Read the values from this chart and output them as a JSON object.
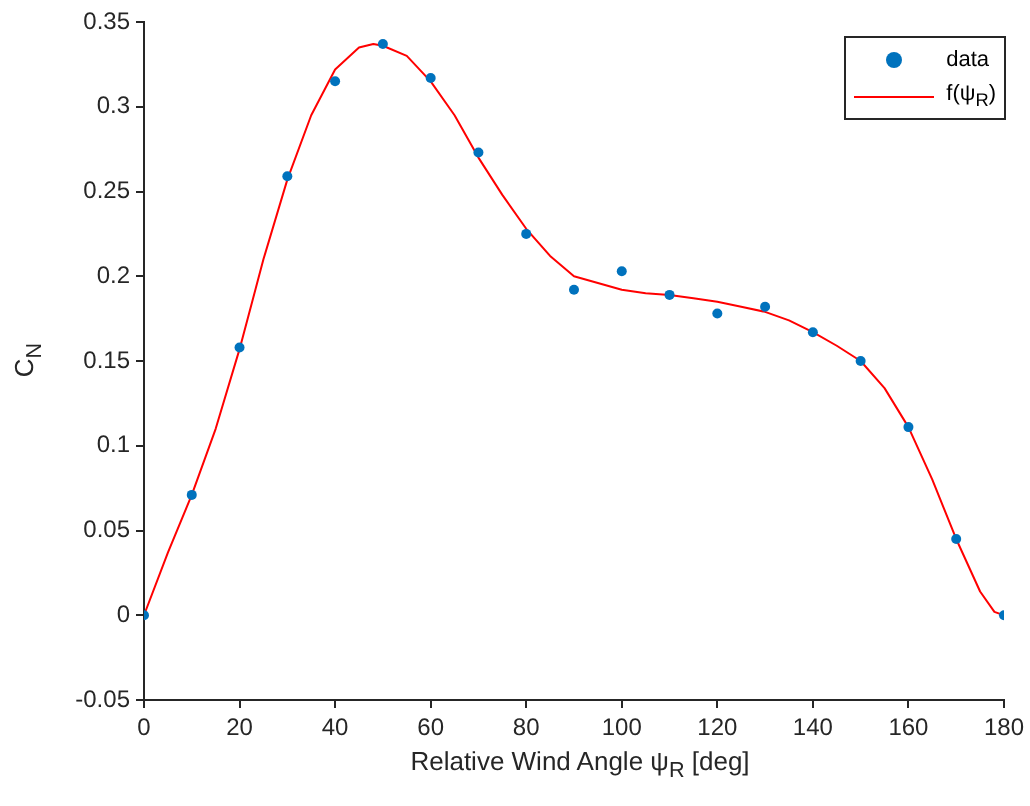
{
  "chart_data": {
    "type": "scatter",
    "xlabel": "Relative Wind Angle ψ$_{R}$ [deg]",
    "ylabel": "C$_{N}$",
    "xlim": [
      0,
      180
    ],
    "xticks": [
      0,
      20,
      40,
      60,
      80,
      100,
      120,
      140,
      160,
      180
    ],
    "ylim": [
      -0.05,
      0.35
    ],
    "yticks": [
      -0.05,
      0,
      0.05,
      0.1,
      0.15,
      0.2,
      0.25,
      0.3,
      0.35
    ],
    "grid": false,
    "legend": "top right",
    "series": [
      {
        "name": "data",
        "marker": "circle",
        "color": "#0072bd",
        "x": [
          0,
          10,
          20,
          30,
          40,
          50,
          60,
          70,
          80,
          90,
          100,
          110,
          120,
          130,
          140,
          150,
          160,
          170,
          180
        ],
        "values": [
          0,
          0.071,
          0.158,
          0.259,
          0.315,
          0.337,
          0.317,
          0.273,
          0.225,
          0.192,
          0.203,
          0.189,
          0.178,
          0.182,
          0.167,
          0.15,
          0.111,
          0.045,
          0
        ]
      },
      {
        "name": "f(ψ$_{R}$)",
        "type": "line",
        "marker": "none",
        "line_style": "solid",
        "color": "#ff0000",
        "x": [
          0,
          5,
          10,
          15,
          20,
          25,
          30,
          35,
          40,
          45,
          48,
          50,
          55,
          60,
          65,
          70,
          75,
          80,
          85,
          90,
          95,
          100,
          105,
          110,
          115,
          120,
          125,
          130,
          135,
          140,
          145,
          150,
          155,
          160,
          165,
          170,
          175,
          178,
          180
        ],
        "values": [
          0,
          0.037,
          0.071,
          0.11,
          0.157,
          0.21,
          0.257,
          0.295,
          0.322,
          0.335,
          0.337,
          0.336,
          0.33,
          0.315,
          0.295,
          0.27,
          0.248,
          0.228,
          0.212,
          0.2,
          0.196,
          0.192,
          0.19,
          0.189,
          0.187,
          0.185,
          0.182,
          0.179,
          0.174,
          0.167,
          0.159,
          0.15,
          0.134,
          0.111,
          0.08,
          0.045,
          0.014,
          0.002,
          0
        ]
      }
    ]
  }
}
